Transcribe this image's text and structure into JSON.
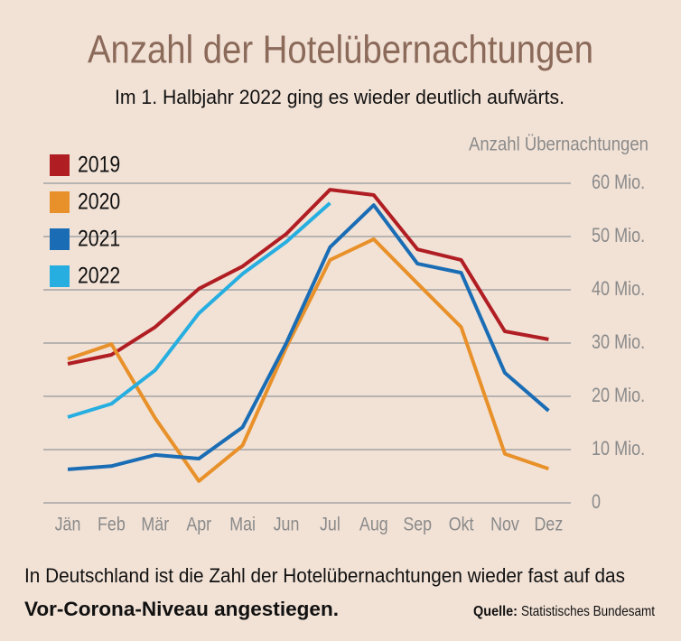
{
  "chart_data": {
    "type": "line",
    "title": "Anzahl der Hotelübernachtungen",
    "subtitle": "Im 1. Halbjahr 2022 ging es wieder deutlich aufwärts.",
    "y_axis_label": "Anzahl Übernachtungen",
    "categories": [
      "Jän",
      "Feb",
      "Mär",
      "Apr",
      "Mai",
      "Jun",
      "Jul",
      "Aug",
      "Sep",
      "Okt",
      "Nov",
      "Dez"
    ],
    "series": [
      {
        "name": "2019",
        "color": "#b01e23",
        "values": [
          26.1,
          27.8,
          33,
          40.2,
          44.4,
          50.5,
          58.8,
          57.8,
          47.6,
          45.6,
          32.2,
          30.7
        ]
      },
      {
        "name": "2020",
        "color": "#e8912a",
        "values": [
          27,
          29.8,
          15.9,
          4.1,
          10.8,
          29.2,
          45.6,
          49.5,
          41.2,
          33,
          9.2,
          6.4
        ]
      },
      {
        "name": "2021",
        "color": "#1a6db5",
        "values": [
          6.3,
          6.9,
          9,
          8.3,
          14.2,
          30,
          48,
          55.9,
          44.9,
          43.2,
          24.4,
          17.3
        ]
      },
      {
        "name": "2022",
        "color": "#27aee0",
        "values": [
          16.1,
          18.6,
          24.9,
          35.6,
          43,
          49,
          56.3,
          null,
          null,
          null,
          null,
          null
        ]
      }
    ],
    "ylim": [
      0,
      60
    ],
    "yticks": [
      0,
      {
        "value": 10,
        "label": "10 Mio."
      },
      {
        "value": 20,
        "label": "20 Mio."
      },
      {
        "value": 30,
        "label": "30 Mio."
      },
      {
        "value": 40,
        "label": "40 Mio."
      },
      {
        "value": 50,
        "label": "50 Mio."
      },
      {
        "value": 60,
        "label": "60 Mio."
      }
    ],
    "grid": true,
    "legend": "top-left",
    "note": [
      "In Deutschland ist die Zahl der Hotelübernachtungen wieder fast auf das",
      "Vor-Corona-Niveau angestiegen."
    ],
    "source": {
      "label": "Quelle:",
      "text": "Statistisches Bundesamt"
    }
  }
}
